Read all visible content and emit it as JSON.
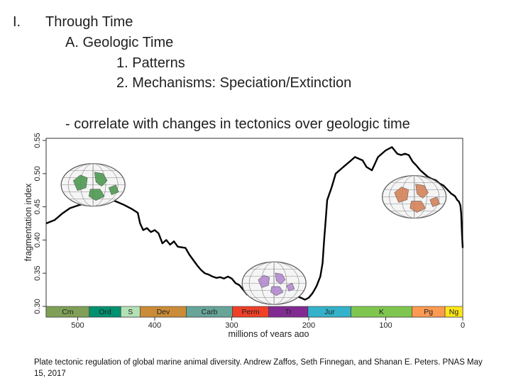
{
  "slide": {
    "numeral": "I.",
    "heading": "Through Time",
    "sub_a": "A. Geologic Time",
    "item_1": "1. Patterns",
    "item_2": "2. Mechanisms: Speciation/Extinction",
    "bullet": "- correlate with changes in tectonics over geologic time",
    "citation": "Plate tectonic regulation of global marine animal diversity. Andrew Zaffos, Seth Finnegan, and Shanan E. Peters. PNAS May 15, 2017"
  },
  "chart_data": {
    "type": "line",
    "title": "",
    "xlabel": "millions of years ago",
    "ylabel": "fragmentation index",
    "xlim": [
      541,
      0
    ],
    "ylim": [
      0.3,
      0.55
    ],
    "xticks": [
      500,
      400,
      300,
      200,
      100,
      0
    ],
    "yticks": [
      0.3,
      0.35,
      0.4,
      0.45,
      0.5,
      0.55
    ],
    "periods": [
      {
        "label": "Cm",
        "start": 541,
        "end": 485,
        "color": "#7fa056"
      },
      {
        "label": "Ord",
        "start": 485,
        "end": 444,
        "color": "#009270"
      },
      {
        "label": "S",
        "start": 444,
        "end": 419,
        "color": "#b3e1b6"
      },
      {
        "label": "Dev",
        "start": 419,
        "end": 359,
        "color": "#cb8c37"
      },
      {
        "label": "Carb",
        "start": 359,
        "end": 299,
        "color": "#67a599"
      },
      {
        "label": "Perm",
        "start": 299,
        "end": 252,
        "color": "#f04028"
      },
      {
        "label": "Tr",
        "start": 252,
        "end": 201,
        "color": "#812b92"
      },
      {
        "label": "Jur",
        "start": 201,
        "end": 145,
        "color": "#34b2c9"
      },
      {
        "label": "K",
        "start": 145,
        "end": 66,
        "color": "#7fc64e"
      },
      {
        "label": "Pg",
        "start": 66,
        "end": 23,
        "color": "#fd9a52"
      },
      {
        "label": "Ng",
        "start": 23,
        "end": 0,
        "color": "#ffe619"
      }
    ],
    "series": [
      {
        "values": [
          [
            541,
            0.425
          ],
          [
            530,
            0.43
          ],
          [
            520,
            0.44
          ],
          [
            510,
            0.448
          ],
          [
            500,
            0.452
          ],
          [
            490,
            0.455
          ],
          [
            480,
            0.458
          ],
          [
            470,
            0.462
          ],
          [
            465,
            0.464
          ],
          [
            460,
            0.462
          ],
          [
            450,
            0.458
          ],
          [
            440,
            0.453
          ],
          [
            430,
            0.447
          ],
          [
            422,
            0.441
          ],
          [
            419,
            0.425
          ],
          [
            415,
            0.415
          ],
          [
            410,
            0.418
          ],
          [
            405,
            0.412
          ],
          [
            400,
            0.415
          ],
          [
            395,
            0.41
          ],
          [
            390,
            0.395
          ],
          [
            385,
            0.4
          ],
          [
            380,
            0.393
          ],
          [
            375,
            0.398
          ],
          [
            370,
            0.39
          ],
          [
            360,
            0.388
          ],
          [
            355,
            0.378
          ],
          [
            350,
            0.37
          ],
          [
            345,
            0.362
          ],
          [
            340,
            0.355
          ],
          [
            335,
            0.35
          ],
          [
            330,
            0.348
          ],
          [
            325,
            0.345
          ],
          [
            320,
            0.343
          ],
          [
            315,
            0.344
          ],
          [
            310,
            0.342
          ],
          [
            305,
            0.345
          ],
          [
            300,
            0.342
          ],
          [
            295,
            0.335
          ],
          [
            290,
            0.332
          ],
          [
            285,
            0.325
          ],
          [
            280,
            0.318
          ],
          [
            275,
            0.322
          ],
          [
            270,
            0.315
          ],
          [
            265,
            0.32
          ],
          [
            260,
            0.318
          ],
          [
            255,
            0.31
          ],
          [
            250,
            0.314
          ],
          [
            245,
            0.318
          ],
          [
            240,
            0.322
          ],
          [
            235,
            0.325
          ],
          [
            230,
            0.32
          ],
          [
            225,
            0.315
          ],
          [
            220,
            0.32
          ],
          [
            215,
            0.315
          ],
          [
            210,
            0.313
          ],
          [
            205,
            0.31
          ],
          [
            200,
            0.313
          ],
          [
            195,
            0.32
          ],
          [
            190,
            0.33
          ],
          [
            185,
            0.345
          ],
          [
            182,
            0.365
          ],
          [
            180,
            0.4
          ],
          [
            178,
            0.43
          ],
          [
            176,
            0.46
          ],
          [
            170,
            0.48
          ],
          [
            165,
            0.5
          ],
          [
            155,
            0.51
          ],
          [
            150,
            0.515
          ],
          [
            145,
            0.52
          ],
          [
            140,
            0.525
          ],
          [
            130,
            0.52
          ],
          [
            125,
            0.51
          ],
          [
            118,
            0.505
          ],
          [
            110,
            0.525
          ],
          [
            100,
            0.535
          ],
          [
            92,
            0.54
          ],
          [
            85,
            0.53
          ],
          [
            80,
            0.528
          ],
          [
            75,
            0.53
          ],
          [
            70,
            0.528
          ],
          [
            65,
            0.518
          ],
          [
            60,
            0.512
          ],
          [
            55,
            0.505
          ],
          [
            50,
            0.5
          ],
          [
            45,
            0.495
          ],
          [
            40,
            0.492
          ],
          [
            35,
            0.49
          ],
          [
            30,
            0.485
          ],
          [
            25,
            0.482
          ],
          [
            20,
            0.476
          ],
          [
            15,
            0.47
          ],
          [
            10,
            0.466
          ],
          [
            7,
            0.46
          ],
          [
            5,
            0.458
          ],
          [
            3,
            0.452
          ],
          [
            2,
            0.44
          ],
          [
            1,
            0.41
          ],
          [
            0,
            0.388
          ]
        ]
      }
    ],
    "insets": [
      {
        "label": "globe-ordovician",
        "x": 480,
        "y": 0.483,
        "continent_color": "#4e9a52",
        "ocean_color": "#f5f5f5"
      },
      {
        "label": "globe-triassic",
        "x": 245,
        "y": 0.335,
        "continent_color": "#b48ad0",
        "ocean_color": "#f5f5f5"
      },
      {
        "label": "globe-modern",
        "x": 63,
        "y": 0.465,
        "continent_color": "#d4835a",
        "ocean_color": "#f5f5f5"
      }
    ],
    "grid": false,
    "legend": "none"
  }
}
